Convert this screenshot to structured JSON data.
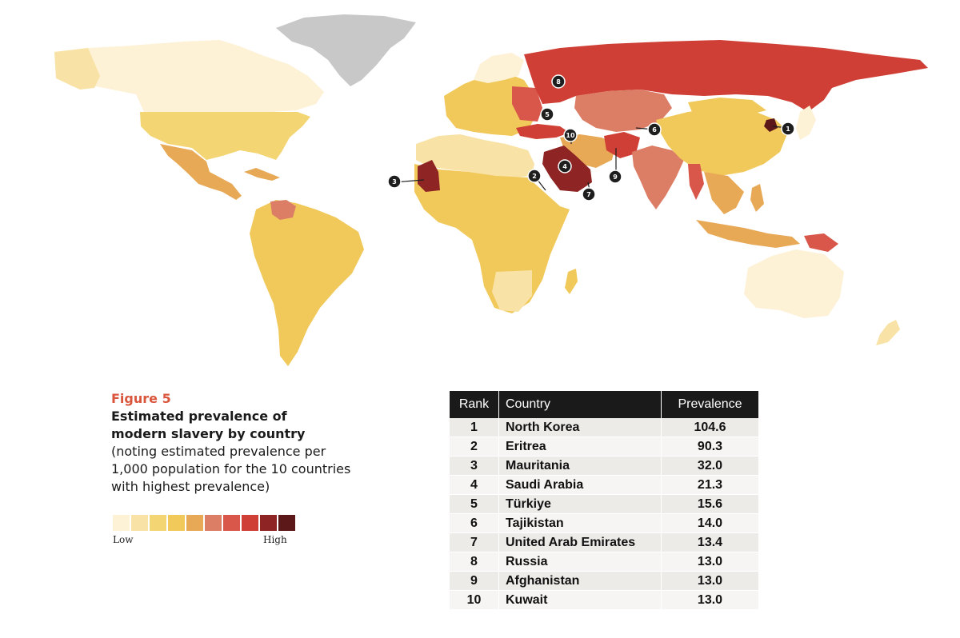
{
  "figure": {
    "label": "Figure 5",
    "title": "Estimated prevalence of modern slavery by country",
    "note": "(noting estimated prevalence per 1,000 population for the 10 countries with highest prevalence)"
  },
  "legend": {
    "low_label": "Low",
    "high_label": "High",
    "colors": [
      "#fdf1d6",
      "#f8e2a5",
      "#f4d574",
      "#f0c95a",
      "#e8a957",
      "#dc7d65",
      "#d8574a",
      "#cf3f35",
      "#8f2424",
      "#5c1818"
    ]
  },
  "table": {
    "headers": {
      "rank": "Rank",
      "country": "Country",
      "prevalence": "Prevalence"
    },
    "rows": [
      {
        "rank": "1",
        "country": "North Korea",
        "prevalence": "104.6"
      },
      {
        "rank": "2",
        "country": "Eritrea",
        "prevalence": "90.3"
      },
      {
        "rank": "3",
        "country": "Mauritania",
        "prevalence": "32.0"
      },
      {
        "rank": "4",
        "country": "Saudi Arabia",
        "prevalence": "21.3"
      },
      {
        "rank": "5",
        "country": "Türkiye",
        "prevalence": "15.6"
      },
      {
        "rank": "6",
        "country": "Tajikistan",
        "prevalence": "14.0"
      },
      {
        "rank": "7",
        "country": "United Arab Emirates",
        "prevalence": "13.4"
      },
      {
        "rank": "8",
        "country": "Russia",
        "prevalence": "13.0"
      },
      {
        "rank": "9",
        "country": "Afghanistan",
        "prevalence": "13.0"
      },
      {
        "rank": "10",
        "country": "Kuwait",
        "prevalence": "13.0"
      }
    ]
  },
  "map": {
    "markers": [
      "1",
      "2",
      "3",
      "4",
      "5",
      "6",
      "7",
      "8",
      "9",
      "10"
    ],
    "no_data_color": "#c8c8c8"
  }
}
